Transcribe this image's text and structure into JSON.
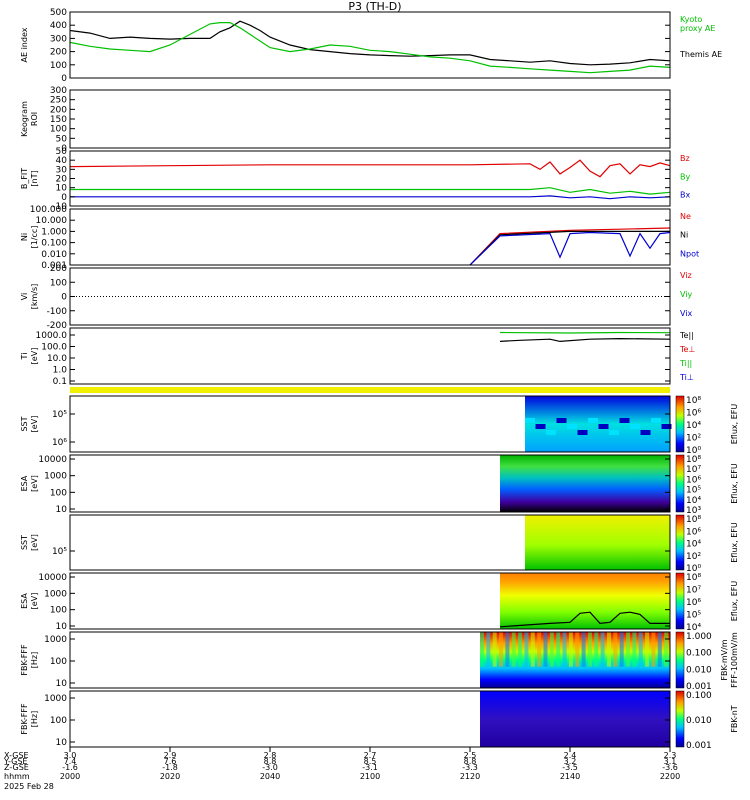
{
  "title": "P3 (TH-D)",
  "date_label": "2025 Feb 28",
  "colors": {
    "black": "#000000",
    "red": "#e00000",
    "green": "#00c000",
    "blue": "#0000d0",
    "yellow": "#f0f000",
    "dotted": "#000000"
  },
  "chart_data": {
    "type": "line",
    "x_axis": {
      "unit_label": "hhmm",
      "ticks": [
        "2000",
        "2020",
        "2040",
        "2100",
        "2120",
        "2140",
        "2200"
      ],
      "extra_rows": [
        {
          "name": "X-GSE",
          "values": [
            "3.0",
            "2.9",
            "2.8",
            "2.7",
            "2.5",
            "2.4",
            "2.3"
          ]
        },
        {
          "name": "Y-GSE",
          "values": [
            "7.4",
            "7.6",
            "8.8",
            "8.5",
            "8.8",
            "3.2",
            "3.1"
          ]
        },
        {
          "name": "Z-GSE",
          "values": [
            "-1.6",
            "-1.8",
            "-3.0",
            "-3.1",
            "-3.3",
            "-3.5",
            "-3.6"
          ]
        }
      ],
      "xlim": [
        0,
        120
      ]
    },
    "panels": [
      {
        "id": "ae",
        "ylabel": "AE index",
        "ylim": [
          0,
          500
        ],
        "yticks": [
          "0",
          "100",
          "200",
          "300",
          "400",
          "500"
        ],
        "legend": [
          {
            "text": "Kyoto",
            "color": "#00c000"
          },
          {
            "text": "proxy AE",
            "color": "#00c000"
          },
          {
            "text": "Themis AE",
            "color": "#000000"
          }
        ],
        "series": [
          {
            "name": "Themis AE",
            "color": "#000000",
            "x": [
              0,
              4,
              8,
              12,
              16,
              20,
              24,
              28,
              30,
              32,
              34,
              36,
              38,
              40,
              44,
              48,
              52,
              56,
              60,
              64,
              68,
              72,
              76,
              80,
              84,
              88,
              92,
              96,
              100,
              104,
              108,
              112,
              116,
              120
            ],
            "y": [
              360,
              340,
              300,
              310,
              300,
              295,
              300,
              300,
              350,
              380,
              430,
              400,
              360,
              310,
              250,
              215,
              200,
              185,
              175,
              170,
              165,
              170,
              175,
              175,
              140,
              130,
              120,
              130,
              110,
              100,
              105,
              115,
              140,
              130
            ]
          },
          {
            "name": "Kyoto proxy AE",
            "color": "#00c000",
            "x": [
              0,
              4,
              8,
              12,
              16,
              20,
              24,
              28,
              30,
              32,
              34,
              36,
              38,
              40,
              44,
              48,
              52,
              56,
              60,
              64,
              68,
              72,
              76,
              80,
              84,
              88,
              92,
              96,
              100,
              104,
              108,
              112,
              116,
              120
            ],
            "y": [
              270,
              240,
              220,
              210,
              200,
              250,
              330,
              410,
              420,
              420,
              380,
              330,
              280,
              230,
              200,
              220,
              250,
              240,
              210,
              200,
              180,
              160,
              150,
              130,
              90,
              80,
              70,
              60,
              50,
              40,
              50,
              60,
              90,
              80
            ]
          }
        ]
      },
      {
        "id": "keogram",
        "ylabel": "Keogram",
        "ylabel2": "ROI",
        "ylim": [
          0,
          300
        ],
        "yticks": [
          "0",
          "50",
          "100",
          "150",
          "200",
          "250",
          "300"
        ]
      },
      {
        "id": "bfit",
        "ylabel": "B_FIT",
        "ylabel2": "[nT]",
        "ylim": [
          -10,
          50
        ],
        "yticks": [
          "-10",
          "0",
          "10",
          "20",
          "30",
          "40",
          "50"
        ],
        "legend": [
          {
            "text": "Bz",
            "color": "#e00000"
          },
          {
            "text": "By",
            "color": "#00c000"
          },
          {
            "text": "Bx",
            "color": "#0000d0"
          }
        ],
        "series": [
          {
            "name": "Bz",
            "color": "#e00000",
            "x": [
              0,
              20,
              40,
              60,
              80,
              92,
              94,
              96,
              98,
              100,
              102,
              104,
              106,
              108,
              110,
              112,
              114,
              116,
              118,
              120
            ],
            "y": [
              33,
              34,
              35,
              35,
              35,
              36,
              30,
              38,
              25,
              32,
              40,
              28,
              22,
              34,
              36,
              25,
              35,
              33,
              37,
              34
            ]
          },
          {
            "name": "By",
            "color": "#00c000",
            "x": [
              0,
              20,
              40,
              60,
              80,
              92,
              96,
              100,
              104,
              108,
              112,
              116,
              120
            ],
            "y": [
              8,
              8,
              8,
              8,
              8,
              8,
              10,
              5,
              8,
              4,
              6,
              3,
              5
            ]
          },
          {
            "name": "Bx",
            "color": "#0000d0",
            "x": [
              0,
              20,
              40,
              60,
              80,
              92,
              96,
              100,
              104,
              108,
              112,
              116,
              120
            ],
            "y": [
              0,
              0,
              0,
              0,
              0,
              0,
              1,
              -1,
              0,
              -2,
              0,
              -1,
              0
            ]
          }
        ]
      },
      {
        "id": "ni",
        "ylabel": "Ni",
        "ylabel2": "[1/cc]",
        "ylim_log": [
          -3,
          2
        ],
        "yticks": [
          "0.001",
          "0.010",
          "0.100",
          "1.000",
          "10.000",
          "100.000"
        ],
        "legend": [
          {
            "text": "Ne",
            "color": "#e00000"
          },
          {
            "text": "Ni",
            "color": "#000000"
          },
          {
            "text": "Npot",
            "color": "#0000d0"
          }
        ],
        "series": [
          {
            "name": "Ne",
            "color": "#e00000",
            "x": [
              80,
              86,
              100,
              110,
              120
            ],
            "y_log": [
              -3,
              -0.2,
              0.1,
              0.2,
              0.3
            ]
          },
          {
            "name": "Ni",
            "color": "#000000",
            "x": [
              80,
              86,
              100,
              110,
              120
            ],
            "y_log": [
              -3,
              -0.3,
              0.0,
              0.0,
              0.0
            ]
          },
          {
            "name": "Npot",
            "color": "#0000d0",
            "x": [
              80,
              86,
              96,
              98,
              100,
              104,
              110,
              112,
              114,
              116,
              118,
              120
            ],
            "y_log": [
              -3,
              -0.4,
              -0.2,
              -2.3,
              -0.2,
              -0.1,
              -0.2,
              -2.2,
              -0.2,
              -1.5,
              -0.2,
              -0.1
            ]
          }
        ]
      },
      {
        "id": "vi",
        "ylabel": "Vi",
        "ylabel2": "[km/s]",
        "ylim": [
          -200,
          200
        ],
        "yticks": [
          "-200",
          "-100",
          "0",
          "100",
          "200"
        ],
        "legend": [
          {
            "text": "Viz",
            "color": "#e00000"
          },
          {
            "text": "Viy",
            "color": "#00c000"
          },
          {
            "text": "Vix",
            "color": "#0000d0"
          }
        ]
      },
      {
        "id": "ti",
        "ylabel": "Ti",
        "ylabel2": "[eV]",
        "ylim_log": [
          -1,
          4
        ],
        "yticks": [
          "0.1",
          "1.0",
          "10.0",
          "100.0",
          "1000.0"
        ],
        "legend": [
          {
            "text": "Te||",
            "color": "#000000"
          },
          {
            "text": "Te⊥",
            "color": "#e00000"
          },
          {
            "text": "Ti||",
            "color": "#00c000"
          },
          {
            "text": "Ti⊥",
            "color": "#0000d0"
          }
        ],
        "series": [
          {
            "name": "Ti||",
            "color": "#00c000",
            "x": [
              86,
              100,
              110,
              120
            ],
            "y_log": [
              3.6,
              3.55,
              3.6,
              3.58
            ]
          },
          {
            "name": "Te||",
            "color": "#000000",
            "x": [
              86,
              90,
              96,
              98,
              104,
              110,
              120
            ],
            "y_log": [
              2.8,
              2.9,
              3.0,
              2.8,
              3.0,
              3.05,
              3.0
            ]
          }
        ]
      },
      {
        "id": "sst1",
        "ylabel": "SST",
        "ylabel2": "[eV]",
        "yticks": [
          "10⁵",
          "10⁶"
        ],
        "colorbar": {
          "label": "Eflux, EFU",
          "ticks": [
            "10⁰",
            "10²",
            "10⁴",
            "10⁶",
            "10⁸"
          ]
        }
      },
      {
        "id": "esa1",
        "ylabel": "ESA",
        "ylabel2": "[eV]",
        "yticks": [
          "10",
          "100",
          "1000",
          "10000"
        ],
        "colorbar": {
          "label": "Eflux, EFU",
          "ticks": [
            "10³",
            "10⁴",
            "10⁵",
            "10⁶",
            "10⁷",
            "10⁸"
          ]
        }
      },
      {
        "id": "sst2",
        "ylabel": "SST",
        "ylabel2": "[eV]",
        "yticks": [
          "10⁵"
        ],
        "colorbar": {
          "label": "Eflux, EFU",
          "ticks": [
            "10⁰",
            "10²",
            "10⁴",
            "10⁶",
            "10⁸"
          ]
        }
      },
      {
        "id": "esa2",
        "ylabel": "ESA",
        "ylabel2": "[eV]",
        "yticks": [
          "10",
          "100",
          "1000",
          "10000"
        ],
        "colorbar": {
          "label": "Eflux, EFU",
          "ticks": [
            "10⁴",
            "10⁵",
            "10⁶",
            "10⁷",
            "10⁸"
          ]
        }
      },
      {
        "id": "fbk1",
        "ylabel": "FBK-FFF",
        "ylabel2": "[Hz]",
        "yticks": [
          "10",
          "100",
          "1000"
        ],
        "colorbar": {
          "label": "FFF-100mV/m",
          "label2": "FBK-mV/m",
          "ticks": [
            "0.001",
            "0.010",
            "0.100",
            "1.000"
          ]
        }
      },
      {
        "id": "fbk2",
        "ylabel": "FBK-FFF",
        "ylabel2": "[Hz]",
        "yticks": [
          "10",
          "100",
          "1000"
        ],
        "colorbar": {
          "label": "FBK-nT",
          "ticks": [
            "0.001",
            "0.010",
            "0.100"
          ]
        }
      }
    ]
  }
}
